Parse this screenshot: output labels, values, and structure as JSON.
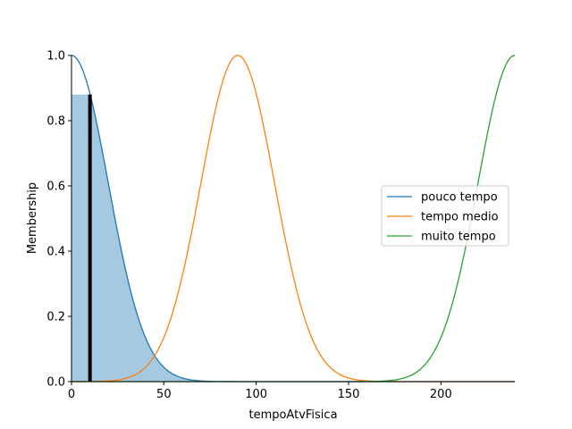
{
  "chart_data": {
    "type": "line",
    "xlabel": "tempoAtvFisica",
    "ylabel": "Membership",
    "xlim": [
      0,
      240
    ],
    "ylim": [
      0,
      1.0
    ],
    "x_ticks": [
      0,
      50,
      100,
      150,
      200
    ],
    "x_tick_labels": [
      "0",
      "50",
      "100",
      "150",
      "200"
    ],
    "y_ticks": [
      0.0,
      0.2,
      0.4,
      0.6,
      0.8,
      1.0
    ],
    "y_tick_labels": [
      "0.0",
      "0.2",
      "0.4",
      "0.6",
      "0.8",
      "1.0"
    ],
    "grid": false,
    "legend_position": "center-right",
    "series": [
      {
        "name": "pouco tempo",
        "shape": "gaussian",
        "mean": 0,
        "sigma": 20,
        "color": "#1f77b4"
      },
      {
        "name": "tempo medio",
        "shape": "gaussian",
        "mean": 90,
        "sigma": 20,
        "color": "#ff7f0e"
      },
      {
        "name": "muito tempo",
        "shape": "gaussian",
        "mean": 240,
        "sigma": 20,
        "color": "#2ca02c"
      }
    ],
    "activation": {
      "input_value": 10,
      "membership_level": 0.88,
      "fill_color": "#1f77b4",
      "line_color": "#000000"
    }
  }
}
